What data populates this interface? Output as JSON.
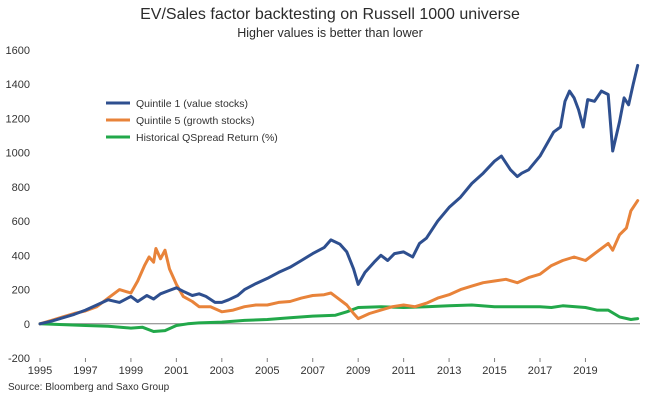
{
  "chart_data": {
    "type": "line",
    "title": "EV/Sales factor backtesting on Russell 1000 universe",
    "subtitle": "Higher values is better than lower",
    "source": "Source: Bloomberg and Saxo Group",
    "xlabel": "",
    "ylabel": "",
    "xlim": [
      1995.0,
      2021.4
    ],
    "ylim": [
      -200,
      1600
    ],
    "x_ticks": [
      1995,
      1997,
      1999,
      2001,
      2003,
      2005,
      2007,
      2009,
      2011,
      2013,
      2015,
      2017,
      2019
    ],
    "y_ticks": [
      -200,
      0,
      200,
      400,
      600,
      800,
      1000,
      1200,
      1400,
      1600
    ],
    "grid": false,
    "legend_position": "top-left",
    "series": [
      {
        "name": "Quintile 1 (value stocks)",
        "color": "#2e4f8f",
        "points": [
          [
            1995.0,
            0
          ],
          [
            1995.5,
            15
          ],
          [
            1996.0,
            35
          ],
          [
            1996.5,
            55
          ],
          [
            1997.0,
            80
          ],
          [
            1997.5,
            110
          ],
          [
            1998.0,
            140
          ],
          [
            1998.5,
            125
          ],
          [
            1999.0,
            160
          ],
          [
            1999.3,
            130
          ],
          [
            1999.7,
            165
          ],
          [
            2000.0,
            145
          ],
          [
            2000.3,
            175
          ],
          [
            2000.7,
            195
          ],
          [
            2001.0,
            210
          ],
          [
            2001.3,
            190
          ],
          [
            2001.7,
            165
          ],
          [
            2002.0,
            175
          ],
          [
            2002.3,
            160
          ],
          [
            2002.7,
            125
          ],
          [
            2003.0,
            125
          ],
          [
            2003.3,
            140
          ],
          [
            2003.7,
            165
          ],
          [
            2004.0,
            200
          ],
          [
            2004.5,
            235
          ],
          [
            2005.0,
            265
          ],
          [
            2005.5,
            300
          ],
          [
            2006.0,
            330
          ],
          [
            2006.5,
            370
          ],
          [
            2007.0,
            410
          ],
          [
            2007.5,
            445
          ],
          [
            2007.8,
            490
          ],
          [
            2008.2,
            465
          ],
          [
            2008.5,
            420
          ],
          [
            2008.8,
            320
          ],
          [
            2009.0,
            230
          ],
          [
            2009.3,
            300
          ],
          [
            2009.7,
            360
          ],
          [
            2010.0,
            400
          ],
          [
            2010.3,
            370
          ],
          [
            2010.6,
            410
          ],
          [
            2011.0,
            420
          ],
          [
            2011.4,
            390
          ],
          [
            2011.7,
            470
          ],
          [
            2012.0,
            500
          ],
          [
            2012.5,
            600
          ],
          [
            2013.0,
            680
          ],
          [
            2013.5,
            740
          ],
          [
            2014.0,
            820
          ],
          [
            2014.5,
            880
          ],
          [
            2015.0,
            950
          ],
          [
            2015.3,
            980
          ],
          [
            2015.7,
            900
          ],
          [
            2016.0,
            860
          ],
          [
            2016.2,
            880
          ],
          [
            2016.5,
            900
          ],
          [
            2017.0,
            980
          ],
          [
            2017.3,
            1050
          ],
          [
            2017.6,
            1120
          ],
          [
            2017.9,
            1150
          ],
          [
            2018.1,
            1300
          ],
          [
            2018.3,
            1360
          ],
          [
            2018.5,
            1320
          ],
          [
            2018.7,
            1250
          ],
          [
            2018.9,
            1150
          ],
          [
            2019.1,
            1310
          ],
          [
            2019.4,
            1300
          ],
          [
            2019.7,
            1360
          ],
          [
            2020.0,
            1340
          ],
          [
            2020.2,
            1010
          ],
          [
            2020.5,
            1180
          ],
          [
            2020.7,
            1320
          ],
          [
            2020.9,
            1280
          ],
          [
            2021.1,
            1400
          ],
          [
            2021.3,
            1510
          ]
        ]
      },
      {
        "name": "Quintile 5 (growth stocks)",
        "color": "#e8833a",
        "points": [
          [
            1995.0,
            0
          ],
          [
            1995.5,
            20
          ],
          [
            1996.0,
            40
          ],
          [
            1996.5,
            60
          ],
          [
            1997.0,
            75
          ],
          [
            1997.5,
            100
          ],
          [
            1998.0,
            150
          ],
          [
            1998.5,
            200
          ],
          [
            1999.0,
            180
          ],
          [
            1999.3,
            250
          ],
          [
            1999.6,
            340
          ],
          [
            1999.8,
            390
          ],
          [
            2000.0,
            360
          ],
          [
            2000.1,
            440
          ],
          [
            2000.3,
            380
          ],
          [
            2000.5,
            430
          ],
          [
            2000.7,
            320
          ],
          [
            2001.0,
            230
          ],
          [
            2001.3,
            160
          ],
          [
            2001.7,
            130
          ],
          [
            2002.0,
            100
          ],
          [
            2002.5,
            100
          ],
          [
            2003.0,
            70
          ],
          [
            2003.5,
            80
          ],
          [
            2004.0,
            100
          ],
          [
            2004.5,
            110
          ],
          [
            2005.0,
            110
          ],
          [
            2005.5,
            125
          ],
          [
            2006.0,
            130
          ],
          [
            2006.5,
            150
          ],
          [
            2007.0,
            165
          ],
          [
            2007.5,
            170
          ],
          [
            2007.8,
            180
          ],
          [
            2008.0,
            160
          ],
          [
            2008.5,
            110
          ],
          [
            2008.8,
            60
          ],
          [
            2009.0,
            30
          ],
          [
            2009.5,
            60
          ],
          [
            2010.0,
            80
          ],
          [
            2010.5,
            100
          ],
          [
            2011.0,
            110
          ],
          [
            2011.5,
            100
          ],
          [
            2012.0,
            120
          ],
          [
            2012.5,
            150
          ],
          [
            2013.0,
            170
          ],
          [
            2013.5,
            200
          ],
          [
            2014.0,
            220
          ],
          [
            2014.5,
            240
          ],
          [
            2015.0,
            250
          ],
          [
            2015.5,
            260
          ],
          [
            2016.0,
            240
          ],
          [
            2016.5,
            270
          ],
          [
            2017.0,
            290
          ],
          [
            2017.5,
            340
          ],
          [
            2018.0,
            370
          ],
          [
            2018.5,
            390
          ],
          [
            2019.0,
            370
          ],
          [
            2019.5,
            420
          ],
          [
            2020.0,
            470
          ],
          [
            2020.2,
            430
          ],
          [
            2020.5,
            520
          ],
          [
            2020.8,
            560
          ],
          [
            2021.0,
            660
          ],
          [
            2021.3,
            720
          ]
        ]
      },
      {
        "name": "Historical QSpread Return (%)",
        "color": "#22a84a",
        "points": [
          [
            1995.0,
            0
          ],
          [
            1996.0,
            -5
          ],
          [
            1997.0,
            -10
          ],
          [
            1998.0,
            -15
          ],
          [
            1999.0,
            -25
          ],
          [
            1999.5,
            -20
          ],
          [
            2000.0,
            -45
          ],
          [
            2000.5,
            -40
          ],
          [
            2001.0,
            -10
          ],
          [
            2001.5,
            0
          ],
          [
            2002.0,
            5
          ],
          [
            2003.0,
            10
          ],
          [
            2004.0,
            20
          ],
          [
            2005.0,
            25
          ],
          [
            2006.0,
            35
          ],
          [
            2007.0,
            45
          ],
          [
            2008.0,
            50
          ],
          [
            2008.5,
            70
          ],
          [
            2009.0,
            95
          ],
          [
            2010.0,
            100
          ],
          [
            2011.0,
            95
          ],
          [
            2012.0,
            100
          ],
          [
            2013.0,
            105
          ],
          [
            2014.0,
            110
          ],
          [
            2015.0,
            100
          ],
          [
            2016.0,
            100
          ],
          [
            2017.0,
            100
          ],
          [
            2017.5,
            95
          ],
          [
            2018.0,
            105
          ],
          [
            2019.0,
            95
          ],
          [
            2019.5,
            80
          ],
          [
            2020.0,
            80
          ],
          [
            2020.5,
            40
          ],
          [
            2021.0,
            25
          ],
          [
            2021.3,
            30
          ]
        ]
      }
    ]
  }
}
